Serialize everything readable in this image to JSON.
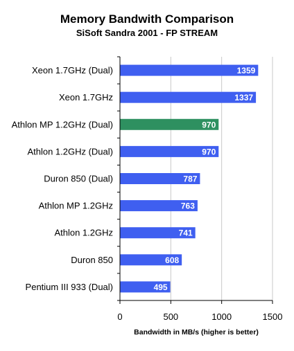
{
  "chart_data": {
    "type": "bar",
    "orientation": "horizontal",
    "title": "Memory Bandwith Comparison",
    "subtitle": "SiSoft Sandra 2001 - FP STREAM",
    "xlabel": "Bandwidth in MB/s (higher is better)",
    "ylabel": "",
    "xlim": [
      0,
      1500
    ],
    "xticks": [
      0,
      500,
      1000,
      1500
    ],
    "grid": true,
    "categories": [
      "Xeon 1.7GHz (Dual)",
      "Xeon 1.7GHz",
      "Athlon MP 1.2GHz (Dual)",
      "Athlon 1.2GHz (Dual)",
      "Duron 850 (Dual)",
      "Athlon MP 1.2GHz",
      "Athlon 1.2GHz",
      "Duron 850",
      "Pentium III 933 (Dual)"
    ],
    "values": [
      1359,
      1337,
      970,
      970,
      787,
      763,
      741,
      608,
      495
    ],
    "colors": {
      "default": "#3f5ff0",
      "highlight": "#2e9060",
      "highlight_index": 2,
      "grid": "#c8c8c8",
      "axis": "#000000"
    }
  }
}
